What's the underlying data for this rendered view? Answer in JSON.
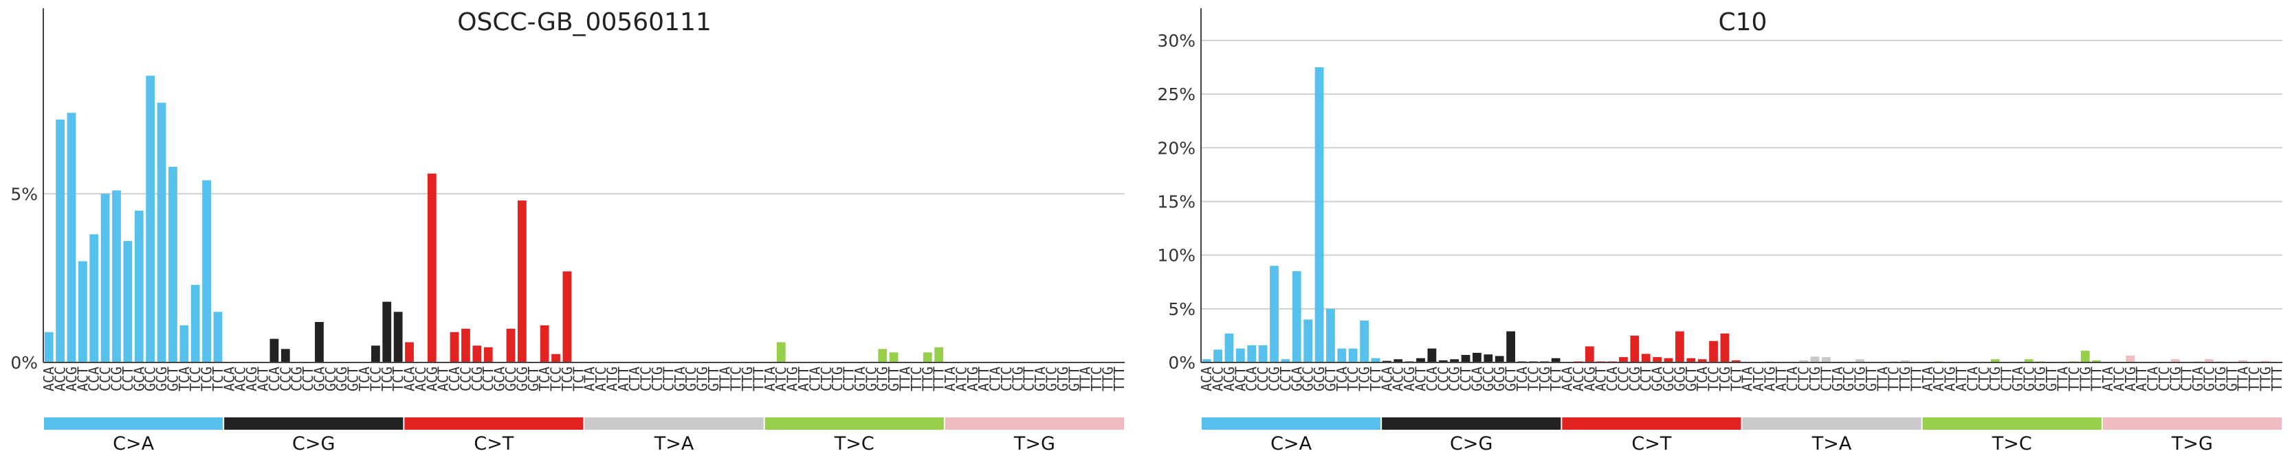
{
  "chart_data": [
    {
      "type": "bar",
      "title": "OSCC-GB_00560111",
      "ylim": [
        0,
        10.5
      ],
      "yticks": [
        0,
        5
      ],
      "ytick_labels": [
        "0%",
        "5%"
      ],
      "grid": "horizontal",
      "groups": [
        "C>A",
        "C>G",
        "C>T",
        "T>A",
        "T>C",
        "T>G"
      ],
      "group_colors": [
        "#56c1ed",
        "#222222",
        "#e32322",
        "#c9c9c9",
        "#96d04a",
        "#eebcc1"
      ],
      "categories": [
        "ACA",
        "ACC",
        "ACG",
        "ACT",
        "CCA",
        "CCC",
        "CCG",
        "CCT",
        "GCA",
        "GCC",
        "GCG",
        "GCT",
        "TCA",
        "TCC",
        "TCG",
        "TCT",
        "ACA",
        "ACC",
        "ACG",
        "ACT",
        "CCA",
        "CCC",
        "CCG",
        "CCT",
        "GCA",
        "GCC",
        "GCG",
        "GCT",
        "TCA",
        "TCC",
        "TCG",
        "TCT",
        "ACA",
        "ACC",
        "ACG",
        "ACT",
        "CCA",
        "CCC",
        "CCG",
        "CCT",
        "GCA",
        "GCC",
        "GCG",
        "GCT",
        "TCA",
        "TCC",
        "TCG",
        "TCT",
        "ATA",
        "ATC",
        "ATG",
        "ATT",
        "CTA",
        "CTC",
        "CTG",
        "CTT",
        "GTA",
        "GTC",
        "GTG",
        "GTT",
        "TTA",
        "TTC",
        "TTG",
        "TTT",
        "ATA",
        "ATC",
        "ATG",
        "ATT",
        "CTA",
        "CTC",
        "CTG",
        "CTT",
        "GTA",
        "GTC",
        "GTG",
        "GTT",
        "TTA",
        "TTC",
        "TTG",
        "TTT",
        "ATA",
        "ATC",
        "ATG",
        "ATT",
        "CTA",
        "CTC",
        "CTG",
        "CTT",
        "GTA",
        "GTC",
        "GTG",
        "GTT",
        "TTA",
        "TTC",
        "TTG",
        "TTT"
      ],
      "values": [
        0.9,
        7.2,
        7.4,
        3.0,
        3.8,
        5.0,
        5.1,
        3.6,
        4.5,
        8.5,
        7.7,
        5.8,
        1.1,
        2.3,
        5.4,
        1.5,
        0,
        0,
        0,
        0,
        0.7,
        0.4,
        0,
        0,
        1.2,
        0,
        0,
        0,
        0,
        0.5,
        1.8,
        1.5,
        0.6,
        0,
        5.6,
        0,
        0.9,
        1.0,
        0.5,
        0.45,
        0,
        1.0,
        4.8,
        0,
        1.1,
        0.25,
        2.7,
        0,
        0,
        0,
        0,
        0,
        0,
        0,
        0,
        0,
        0,
        0,
        0,
        0,
        0,
        0,
        0,
        0,
        0,
        0.6,
        0,
        0,
        0,
        0,
        0,
        0,
        0,
        0,
        0.4,
        0.3,
        0,
        0,
        0.3,
        0.45,
        0,
        0,
        0,
        0,
        0,
        0,
        0,
        0,
        0,
        0,
        0,
        0,
        0,
        0,
        0,
        0
      ]
    },
    {
      "type": "bar",
      "title": "C10",
      "ylim": [
        0,
        33
      ],
      "yticks": [
        0,
        5,
        10,
        15,
        20,
        25,
        30
      ],
      "ytick_labels": [
        "0%",
        "5%",
        "10%",
        "15%",
        "20%",
        "25%",
        "30%"
      ],
      "grid": "horizontal",
      "groups": [
        "C>A",
        "C>G",
        "C>T",
        "T>A",
        "T>C",
        "T>G"
      ],
      "group_colors": [
        "#56c1ed",
        "#222222",
        "#e32322",
        "#c9c9c9",
        "#96d04a",
        "#eebcc1"
      ],
      "categories": [
        "ACA",
        "ACC",
        "ACG",
        "ACT",
        "CCA",
        "CCC",
        "CCG",
        "CCT",
        "GCA",
        "GCC",
        "GCG",
        "GCT",
        "TCA",
        "TCC",
        "TCG",
        "TCT",
        "ACA",
        "ACC",
        "ACG",
        "ACT",
        "CCA",
        "CCC",
        "CCG",
        "CCT",
        "GCA",
        "GCC",
        "GCG",
        "GCT",
        "TCA",
        "TCC",
        "TCG",
        "TCT",
        "ACA",
        "ACC",
        "ACG",
        "ACT",
        "CCA",
        "CCC",
        "CCG",
        "CCT",
        "GCA",
        "GCC",
        "GCG",
        "GCT",
        "TCA",
        "TCC",
        "TCG",
        "TCT",
        "ATA",
        "ATC",
        "ATG",
        "ATT",
        "CTA",
        "CTC",
        "CTG",
        "CTT",
        "GTA",
        "GTC",
        "GTG",
        "GTT",
        "TTA",
        "TTC",
        "TTG",
        "TTT",
        "ATA",
        "ATC",
        "ATG",
        "ATT",
        "CTA",
        "CTC",
        "CTG",
        "CTT",
        "GTA",
        "GTC",
        "GTG",
        "GTT",
        "TTA",
        "TTC",
        "TTG",
        "TTT",
        "ATA",
        "ATC",
        "ATG",
        "ATT",
        "CTA",
        "CTC",
        "CTG",
        "CTT",
        "GTA",
        "GTC",
        "GTG",
        "GTT",
        "TTA",
        "TTC",
        "TTG",
        "TTT"
      ],
      "values": [
        0.3,
        1.2,
        2.7,
        1.3,
        1.6,
        1.6,
        9.0,
        0.3,
        8.5,
        4.0,
        27.5,
        5.0,
        1.3,
        1.3,
        3.9,
        0.4,
        0.15,
        0.3,
        0.1,
        0.4,
        1.3,
        0.2,
        0.3,
        0.7,
        0.9,
        0.75,
        0.6,
        2.9,
        0.1,
        0.1,
        0.1,
        0.4,
        0.05,
        0.1,
        1.5,
        0.1,
        0.1,
        0.5,
        2.5,
        0.8,
        0.5,
        0.4,
        2.9,
        0.4,
        0.3,
        2.0,
        2.7,
        0.2,
        0.05,
        0.05,
        0.1,
        0.05,
        0.05,
        0.2,
        0.55,
        0.5,
        0.05,
        0.05,
        0.3,
        0.05,
        0.05,
        0.1,
        0.2,
        0.05,
        0.05,
        0.1,
        0.05,
        0.05,
        0.05,
        0.05,
        0.3,
        0.05,
        0.05,
        0.3,
        0.1,
        0.05,
        0.05,
        0.1,
        1.1,
        0.2,
        0.05,
        0.05,
        0.65,
        0.05,
        0.05,
        0.05,
        0.3,
        0.05,
        0.1,
        0.3,
        0.1,
        0.05,
        0.2,
        0.05,
        0.15,
        0.05
      ]
    }
  ]
}
